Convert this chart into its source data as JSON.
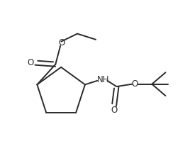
{
  "background_color": "#ffffff",
  "line_color": "#2a2a2a",
  "line_width": 1.4,
  "font_size": 8.5,
  "figsize": [
    2.68,
    2.06
  ],
  "dpi": 100,
  "xlim": [
    -1.4,
    2.5
  ],
  "ylim": [
    -1.2,
    1.3
  ]
}
